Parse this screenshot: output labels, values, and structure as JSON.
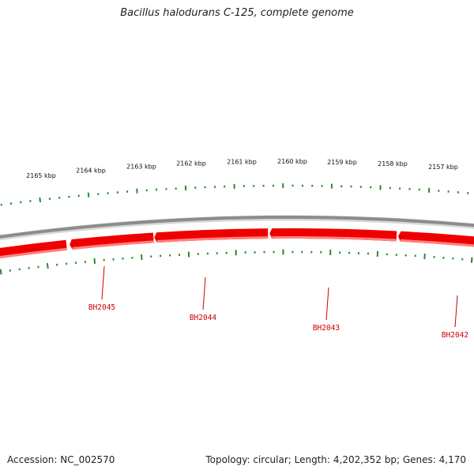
{
  "title": "Bacillus halodurans C-125, complete genome",
  "accession": "Accession: NC_002570",
  "summary": "Topology: circular; Length: 4,202,352 bp; Genes: 4,170",
  "colors": {
    "backbone": "#8c8c8c",
    "gene": "#ee0000",
    "gene_shade": "#ff8080",
    "tick": "#2a8a2a",
    "label": "#cc0000"
  },
  "scale_labels": [
    "2165 kbp",
    "2164 kbp",
    "2163 kbp",
    "2162 kbp",
    "2161 kbp",
    "2160 kbp",
    "2159 kbp",
    "2158 kbp",
    "2157 kbp"
  ],
  "genes": [
    {
      "label": "BH2045",
      "strand": "reverse"
    },
    {
      "label": "BH2044",
      "strand": "reverse"
    },
    {
      "label": "BH2043",
      "strand": "reverse"
    },
    {
      "label": "BH2042",
      "strand": "reverse"
    }
  ]
}
